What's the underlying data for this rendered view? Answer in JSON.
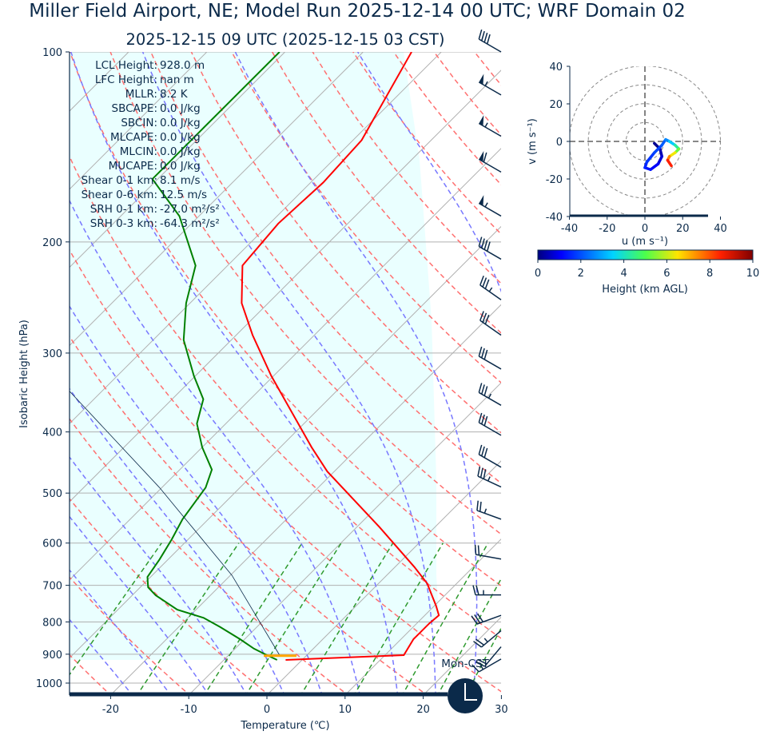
{
  "title": {
    "line1": "Miller Field Airport, NE; Model Run 2025-12-14 00 UTC; WRF Domain 02",
    "line2": "2025-12-15 09 UTC  (2025-12-15 03 CST)"
  },
  "stats": [
    {
      "label": "LCL Height:",
      "value": "928.0 m"
    },
    {
      "label": "LFC Height:",
      "value": "nan m"
    },
    {
      "label": "MLLR:",
      "value": "8.2 K"
    },
    {
      "label": "SBCAPE:",
      "value": "0.0 J/kg"
    },
    {
      "label": "SBCIN:",
      "value": "0.0 J/kg"
    },
    {
      "label": "MLCAPE:",
      "value": "0.0 J/kg"
    },
    {
      "label": "MLCIN:",
      "value": "0.0 J/kg"
    },
    {
      "label": "MUCAPE:",
      "value": "0.0 J/kg"
    },
    {
      "label": "Shear 0-1 km:",
      "value": "8.1 m/s"
    },
    {
      "label": "Shear 0-6 km:",
      "value": "12.5 m/s"
    },
    {
      "label": "SRH 0-1 km:",
      "value": "-27.0 m²/s²"
    },
    {
      "label": "SRH 0-3 km:",
      "value": "-64.3 m²/s²"
    }
  ],
  "clock": {
    "label": "Mon-CST",
    "icon": "clock-icon"
  },
  "colors": {
    "temperature": "#ff0000",
    "dewpoint": "#008000",
    "parcel": "#0b2a4a",
    "isotherm": "#b0b0b0",
    "dry_adiabat": "#ff7070",
    "moist_adiabat": "#7878ff",
    "mixing_ratio": "#2e9a2e",
    "fill": "#eaffff",
    "axis": "#0b2a4a",
    "lcl_marker": "#ffa500"
  },
  "chart_data": [
    {
      "type": "line",
      "title": "Skew-T log-P",
      "xlabel": "Temperature (℃)",
      "ylabel": "Isobaric Height (hPa)",
      "xlim": [
        -25.5,
        30
      ],
      "ylim": [
        1045,
        100
      ],
      "xticks": [
        -20,
        -10,
        0,
        10,
        20,
        30
      ],
      "yticks": [
        100,
        200,
        300,
        400,
        500,
        600,
        700,
        800,
        900,
        1000
      ],
      "grid": true,
      "lcl_pressure": 905,
      "series": [
        {
          "name": "Temperature",
          "pressure": [
            919,
            903,
            852,
            804,
            781,
            754,
            695,
            655,
            566,
            462,
            423,
            326,
            281,
            250,
            218,
            187,
            161,
            138,
            100
          ],
          "values": [
            -2.1,
            12.4,
            11.6,
            11.6,
            11.8,
            10.2,
            6.2,
            2.5,
            -7.1,
            -20.9,
            -26.0,
            -40.3,
            -47.9,
            -53.4,
            -58.1,
            -58.9,
            -58.4,
            -58.9,
            -63.8
          ]
        },
        {
          "name": "Dewpoint",
          "pressure": [
            919,
            898,
            882,
            852,
            815,
            788,
            765,
            726,
            705,
            679,
            637,
            592,
            550,
            490,
            459,
            423,
            388,
            355,
            326,
            286,
            250,
            218,
            182,
            159,
            134,
            100
          ],
          "values": [
            -3.2,
            -5.7,
            -7.6,
            -10.6,
            -14.7,
            -18.0,
            -22.4,
            -27.0,
            -29.0,
            -30.4,
            -31.1,
            -32.1,
            -33.3,
            -34.4,
            -35.9,
            -40.0,
            -43.7,
            -46.0,
            -50.2,
            -56.1,
            -60.5,
            -64.1,
            -72.5,
            -80.7,
            -80.7,
            -80.7
          ]
        },
        {
          "name": "Parcel",
          "pressure": [
            903,
            675,
            490,
            345
          ],
          "values": [
            -3.5,
            -19.8,
            -40.3,
            -64.1
          ]
        }
      ],
      "wind_barbs": {
        "pressure": [
          100,
          117,
          136,
          155,
          182,
          213,
          247,
          281,
          318,
          363,
          405,
          455,
          489,
          550,
          636,
          725,
          781,
          826,
          876,
          916
        ],
        "speed_kt": [
          40,
          55,
          55,
          60,
          55,
          40,
          35,
          30,
          30,
          35,
          30,
          30,
          35,
          25,
          20,
          25,
          30,
          25,
          20,
          15
        ],
        "direction_deg": [
          300,
          300,
          300,
          300,
          300,
          300,
          305,
          305,
          300,
          300,
          300,
          300,
          295,
          290,
          280,
          270,
          250,
          230,
          220,
          240
        ]
      }
    },
    {
      "type": "line",
      "title": "Hodograph",
      "xlabel": "u (m s⁻¹)",
      "ylabel": "v (m s⁻¹)",
      "xlim": [
        -40,
        40
      ],
      "ylim": [
        -40,
        40
      ],
      "xticks": [
        -40,
        -20,
        0,
        20,
        40
      ],
      "yticks": [
        -40,
        -20,
        0,
        20,
        40
      ],
      "rings": [
        10,
        20,
        30,
        40
      ],
      "u": [
        5,
        8,
        9,
        7,
        3,
        0,
        1,
        5,
        9,
        11,
        13,
        16,
        18,
        16,
        13,
        12,
        14
      ],
      "v": [
        -1,
        -4,
        -8,
        -12,
        -15,
        -14,
        -11,
        -6,
        -2,
        1,
        0,
        -2,
        -4,
        -6,
        -8,
        -10,
        -13
      ],
      "height_km": [
        0,
        0.3,
        0.6,
        0.9,
        1.2,
        1.4,
        1.6,
        1.8,
        2.0,
        2.3,
        3,
        3.8,
        4.8,
        5.8,
        7,
        8,
        9
      ],
      "colorbar": {
        "label": "Height (km AGL)",
        "range": [
          0,
          10
        ],
        "ticks": [
          0,
          2,
          4,
          6,
          8,
          10
        ]
      }
    }
  ]
}
